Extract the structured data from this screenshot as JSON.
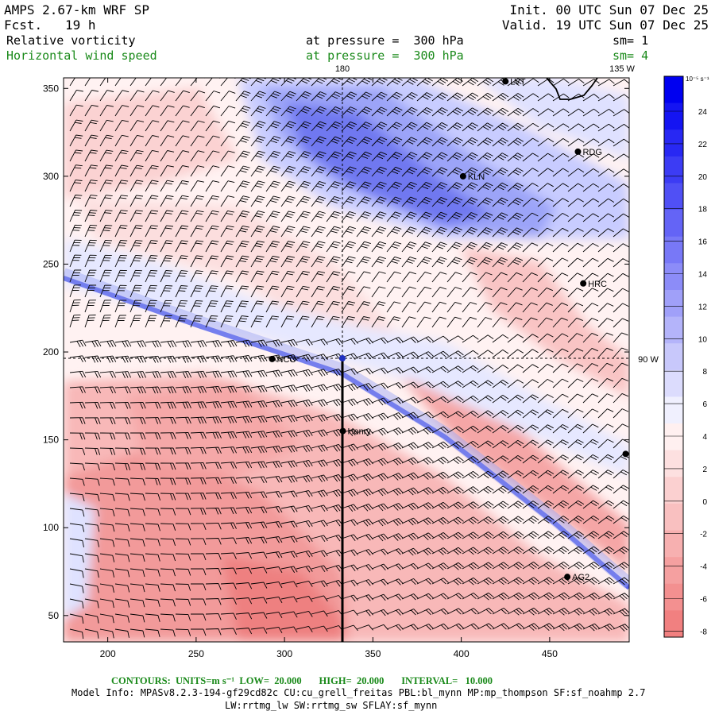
{
  "header": {
    "model": "AMPS 2.67-km WRF SP",
    "fcst_label": "Fcst.",
    "fcst_value": "19 h",
    "init": "Init. 00 UTC Sun 07 Dec 25",
    "valid": "Valid. 19 UTC Sun 07 Dec 25",
    "field1_name": "Relative vorticity",
    "field1_pressure": "at pressure =  300 hPa",
    "field1_sm": "sm= 1",
    "field2_name": "Horizontal wind speed",
    "field2_pressure": "at pressure =  300 hPa",
    "field2_sm": "sm= 4"
  },
  "map": {
    "lon_labels": [
      "180",
      "135 W",
      "90 W"
    ],
    "stations": [
      {
        "name": "LVT",
        "x": 425,
        "y": 354
      },
      {
        "name": "RDG",
        "x": 466,
        "y": 314
      },
      {
        "name": "KLN",
        "x": 401,
        "y": 300
      },
      {
        "name": "HRC",
        "x": 469,
        "y": 239
      },
      {
        "name": "NCO",
        "x": 293,
        "y": 196
      },
      {
        "name": "Henry",
        "x": 333,
        "y": 155
      },
      {
        "name": "AG2",
        "x": 460,
        "y": 72
      },
      {
        "name": "",
        "x": 493,
        "y": 142
      }
    ],
    "xlim": [
      175,
      495
    ],
    "ylim": [
      35,
      356
    ],
    "x_ticks": [
      "200",
      "250",
      "300",
      "350",
      "400",
      "450"
    ],
    "y_ticks": [
      "50",
      "100",
      "150",
      "200",
      "250",
      "300",
      "350"
    ],
    "colors": {
      "pos": "#0000ff",
      "neg": "#f06060"
    }
  },
  "colorbar": {
    "unit": "10⁻⁵ s⁻¹",
    "labels": [
      "24",
      "22",
      "20",
      "18",
      "16",
      "14",
      "12",
      "10",
      "8",
      "6",
      "4",
      "2",
      "0",
      "-2",
      "-4",
      "-6",
      "-8"
    ]
  },
  "footer": {
    "contours": "CONTOURS:  UNITS=m s⁻¹  LOW=  20.000       HIGH=  20.000       INTERVAL=   10.000",
    "model_info": "Model Info: MPASv8.2.3-194-gf29cd82c CU:cu_grell_freitas PBL:bl_mynn MP:mp_thompson SF:sf_noahmp 2.7",
    "model_info2": "LW:rrtmg_lw SW:rrtmg_sw SFLAY:sf_mynn"
  }
}
